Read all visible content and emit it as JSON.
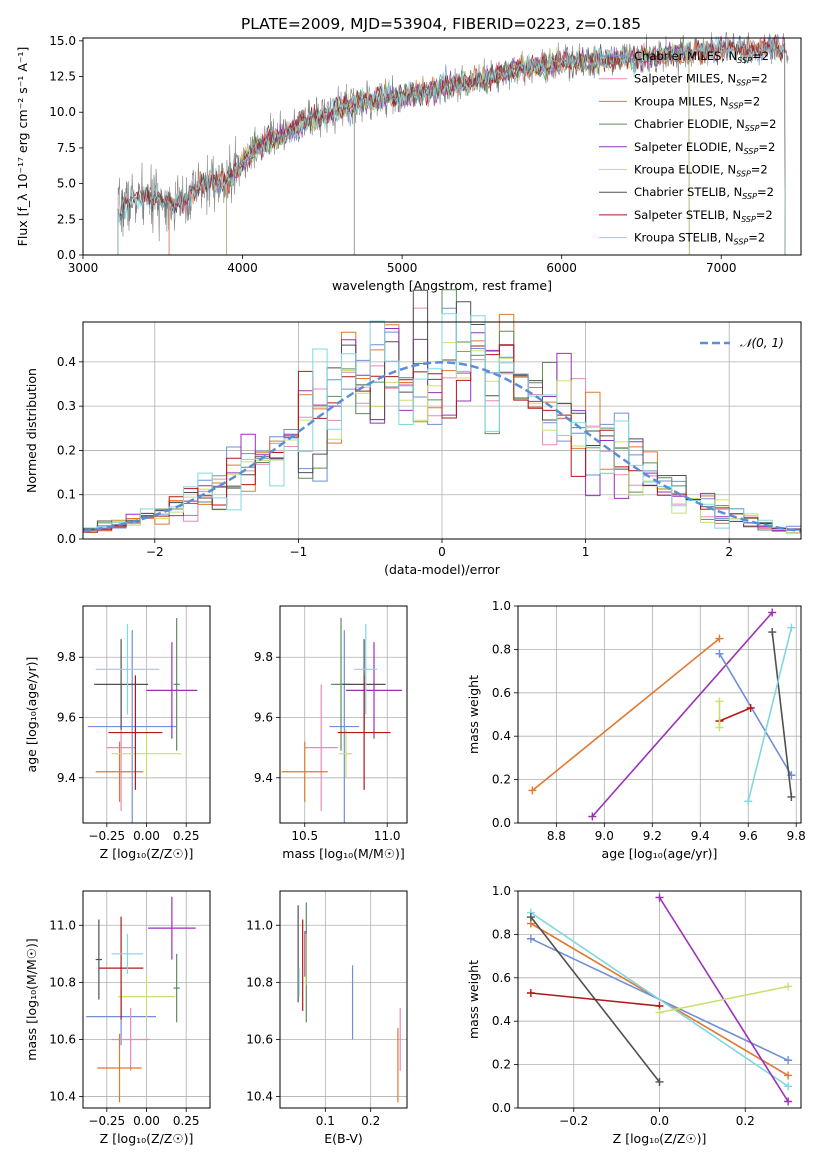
{
  "figure_title": "PLATE=2009, MJD=53904, FIBERID=0223, z=0.185",
  "colors": {
    "Chabrier MILES": "#6f8fd8",
    "Salpeter MILES": "#e88ab8",
    "Kroupa MILES": "#e07830",
    "Chabrier ELODIE": "#5e8c5e",
    "Salpeter ELODIE": "#9a30b8",
    "Kroupa ELODIE": "#c8e070",
    "Chabrier STELIB": "#505050",
    "Salpeter STELIB": "#b01818",
    "Kroupa STELIB": "#80d8e0",
    "data": "#808080",
    "gaussian": "#5a8ed8"
  },
  "chart_data": [
    {
      "id": "spectrum",
      "type": "line",
      "title": "PLATE=2009, MJD=53904, FIBERID=0223, z=0.185",
      "xlabel": "wavelength [Angstrom, rest frame]",
      "ylabel": "Flux [f_λ 10⁻¹⁷ erg cm⁻² s⁻¹ A⁻¹]",
      "xlim": [
        3000,
        7500
      ],
      "ylim": [
        0,
        15.2
      ],
      "xticks": [
        "3000",
        "4000",
        "5000",
        "6000",
        "7000"
      ],
      "yticks": [
        "0.0",
        "2.5",
        "5.0",
        "7.5",
        "10.0",
        "12.5",
        "15.0"
      ],
      "legend": [
        "Chabrier MILES, N_SSP=2",
        "Salpeter MILES, N_SSP=2",
        "Kroupa MILES, N_SSP=2",
        "Chabrier ELODIE, N_SSP=2",
        "Salpeter ELODIE, N_SSP=2",
        "Kroupa ELODIE, N_SSP=2",
        "Chabrier STELIB, N_SSP=2",
        "Salpeter STELIB, N_SSP=2",
        "Kroupa STELIB, N_SSP=2"
      ],
      "legend_position": "right",
      "continuum": [
        [
          3220,
          3.0
        ],
        [
          3300,
          3.9
        ],
        [
          3400,
          4.0
        ],
        [
          3500,
          3.8
        ],
        [
          3600,
          3.6
        ],
        [
          3700,
          4.4
        ],
        [
          3800,
          5.2
        ],
        [
          3900,
          5.0
        ],
        [
          4000,
          6.5
        ],
        [
          4100,
          7.6
        ],
        [
          4200,
          8.2
        ],
        [
          4300,
          8.6
        ],
        [
          4400,
          9.4
        ],
        [
          4500,
          9.8
        ],
        [
          4600,
          10.2
        ],
        [
          4700,
          10.6
        ],
        [
          4800,
          10.9
        ],
        [
          4900,
          11.1
        ],
        [
          5000,
          11.1
        ],
        [
          5100,
          11.3
        ],
        [
          5200,
          11.6
        ],
        [
          5300,
          11.9
        ],
        [
          5400,
          12.0
        ],
        [
          5500,
          12.3
        ],
        [
          5600,
          12.6
        ],
        [
          5700,
          12.9
        ],
        [
          5800,
          13.1
        ],
        [
          5900,
          13.3
        ],
        [
          6000,
          13.5
        ],
        [
          6100,
          13.5
        ],
        [
          6200,
          13.6
        ],
        [
          6300,
          13.7
        ],
        [
          6400,
          13.8
        ],
        [
          6500,
          13.8
        ],
        [
          6600,
          13.9
        ],
        [
          6700,
          14.1
        ],
        [
          6800,
          14.2
        ],
        [
          6900,
          14.3
        ],
        [
          7000,
          14.5
        ],
        [
          7100,
          14.5
        ],
        [
          7200,
          14.3
        ],
        [
          7300,
          14.6
        ],
        [
          7400,
          14.4
        ]
      ],
      "model_ranges": [
        {
          "name": "Chabrier MILES",
          "start": 3540,
          "end": 7400
        },
        {
          "name": "Salpeter MILES",
          "start": 3540,
          "end": 7400
        },
        {
          "name": "Kroupa MILES",
          "start": 3540,
          "end": 7400
        },
        {
          "name": "Chabrier ELODIE",
          "start": 3900,
          "end": 6800
        },
        {
          "name": "Salpeter ELODIE",
          "start": 3900,
          "end": 6800
        },
        {
          "name": "Kroupa ELODIE",
          "start": 3900,
          "end": 6800
        },
        {
          "name": "Chabrier STELIB",
          "start": 3220,
          "end": 7400
        },
        {
          "name": "Salpeter STELIB",
          "start": 3220,
          "end": 7400
        },
        {
          "name": "Kroupa STELIB",
          "start": 3220,
          "end": 7400
        }
      ]
    },
    {
      "id": "residuals",
      "type": "line",
      "xlabel": "(data-model)/error",
      "ylabel": "Normed distribution",
      "xlim": [
        -2.5,
        2.5
      ],
      "ylim": [
        0,
        0.49
      ],
      "xticks": [
        "−2",
        "−1",
        "0",
        "1",
        "2"
      ],
      "yticks": [
        "0.0",
        "0.1",
        "0.2",
        "0.3",
        "0.4"
      ],
      "grid": true,
      "legend": [
        "𝒩(0, 1)"
      ],
      "legend_position": "top-right",
      "bin_width": 0.1
    },
    {
      "id": "age_vs_Z",
      "type": "scatter",
      "xlabel": "Z [log₁₀(Z/Z☉)]",
      "ylabel": "age [log₁₀(age/yr)]",
      "xlim": [
        -0.4,
        0.4
      ],
      "ylim": [
        9.25,
        9.97
      ],
      "xticks": [
        "−0.25",
        "0.00",
        "0.25"
      ],
      "yticks": [
        "9.4",
        "9.6",
        "9.8"
      ],
      "grid": true,
      "points": [
        {
          "series": "Chabrier MILES",
          "x": -0.09,
          "xerr": 0.28,
          "y": 9.57,
          "yerr": 0.32
        },
        {
          "series": "Salpeter MILES",
          "x": -0.16,
          "xerr": 0.09,
          "y": 9.5,
          "yerr": 0.21
        },
        {
          "series": "Kroupa MILES",
          "x": -0.17,
          "xerr": 0.15,
          "y": 9.42,
          "yerr": 0.1
        },
        {
          "series": "Chabrier ELODIE",
          "x": 0.19,
          "xerr": 0.02,
          "y": 9.71,
          "yerr": 0.22
        },
        {
          "series": "Salpeter ELODIE",
          "x": 0.16,
          "xerr": 0.16,
          "y": 9.69,
          "yerr": 0.16
        },
        {
          "series": "Kroupa ELODIE",
          "x": 0.0,
          "xerr": 0.22,
          "y": 9.48,
          "yerr": 0.08
        },
        {
          "series": "Chabrier STELIB",
          "x": -0.16,
          "xerr": 0.17,
          "y": 9.71,
          "yerr": 0.15
        },
        {
          "series": "Salpeter STELIB",
          "x": -0.07,
          "xerr": 0.17,
          "y": 9.55,
          "yerr": 0.19
        },
        {
          "series": "Kroupa STELIB",
          "x": -0.12,
          "xerr": 0.2,
          "y": 9.76,
          "yerr": 0.15
        }
      ]
    },
    {
      "id": "age_vs_mass",
      "type": "scatter",
      "xlabel": "mass [log₁₀(M/M☉)]",
      "ylabel": "",
      "xlim": [
        10.35,
        11.12
      ],
      "ylim": [
        9.25,
        9.97
      ],
      "xticks": [
        "10.5",
        "11.0"
      ],
      "yticks": [
        "9.4",
        "9.6",
        "9.8"
      ],
      "grid": true,
      "points": [
        {
          "series": "Chabrier MILES",
          "x": 10.74,
          "xerr": 0.09,
          "y": 9.57,
          "yerr": 0.32
        },
        {
          "series": "Salpeter MILES",
          "x": 10.6,
          "xerr": 0.1,
          "y": 9.5,
          "yerr": 0.21
        },
        {
          "series": "Kroupa MILES",
          "x": 10.5,
          "xerr": 0.14,
          "y": 9.42,
          "yerr": 0.1
        },
        {
          "series": "Chabrier ELODIE",
          "x": 10.72,
          "xerr": 0.06,
          "y": 9.71,
          "yerr": 0.22
        },
        {
          "series": "Salpeter ELODIE",
          "x": 10.92,
          "xerr": 0.17,
          "y": 9.69,
          "yerr": 0.16
        },
        {
          "series": "Kroupa ELODIE",
          "x": 10.75,
          "xerr": 0.04,
          "y": 9.48,
          "yerr": 0.08
        },
        {
          "series": "Chabrier STELIB",
          "x": 10.86,
          "xerr": 0.13,
          "y": 9.71,
          "yerr": 0.15
        },
        {
          "series": "Salpeter STELIB",
          "x": 10.86,
          "xerr": 0.16,
          "y": 9.55,
          "yerr": 0.19
        },
        {
          "series": "Kroupa STELIB",
          "x": 10.87,
          "xerr": 0.07,
          "y": 9.76,
          "yerr": 0.15
        }
      ]
    },
    {
      "id": "mass_weight_vs_age",
      "type": "line",
      "xlabel": "age [log₁₀(age/yr)]",
      "ylabel": "mass weight",
      "xlim": [
        8.64,
        9.82
      ],
      "ylim": [
        0,
        1
      ],
      "xticks": [
        "8.8",
        "9.0",
        "9.2",
        "9.4",
        "9.6",
        "9.8"
      ],
      "yticks": [
        "0.0",
        "0.2",
        "0.4",
        "0.6",
        "0.8",
        "1.0"
      ],
      "grid": true,
      "series": [
        {
          "series": "Kroupa MILES",
          "points": [
            [
              8.7,
              0.15
            ],
            [
              9.48,
              0.85
            ]
          ]
        },
        {
          "series": "Salpeter ELODIE",
          "points": [
            [
              8.95,
              0.03
            ],
            [
              9.7,
              0.97
            ]
          ]
        },
        {
          "series": "Chabrier MILES",
          "points": [
            [
              9.48,
              0.78
            ],
            [
              9.78,
              0.22
            ]
          ]
        },
        {
          "series": "Salpeter STELIB",
          "points": [
            [
              9.48,
              0.47
            ],
            [
              9.61,
              0.53
            ]
          ]
        },
        {
          "series": "Kroupa ELODIE",
          "points": [
            [
              9.48,
              0.44
            ],
            [
              9.48,
              0.56
            ]
          ]
        },
        {
          "series": "Chabrier STELIB",
          "points": [
            [
              9.7,
              0.88
            ],
            [
              9.78,
              0.12
            ]
          ]
        },
        {
          "series": "Kroupa STELIB",
          "points": [
            [
              9.6,
              0.1
            ],
            [
              9.78,
              0.9
            ]
          ]
        }
      ]
    },
    {
      "id": "mass_vs_Z",
      "type": "scatter",
      "xlabel": "Z [log₁₀(Z/Z☉)]",
      "ylabel": "mass [log₁₀(M/M☉)]",
      "xlim": [
        -0.4,
        0.4
      ],
      "ylim": [
        10.36,
        11.12
      ],
      "xticks": [
        "−0.25",
        "0.00",
        "0.25"
      ],
      "yticks": [
        "10.4",
        "10.6",
        "10.8",
        "11.0"
      ],
      "grid": true,
      "points": [
        {
          "series": "Chabrier MILES",
          "x": -0.16,
          "xerr": 0.22,
          "y": 10.68,
          "yerr": 0.1
        },
        {
          "series": "Salpeter MILES",
          "x": -0.1,
          "xerr": 0.12,
          "y": 10.6,
          "yerr": 0.11
        },
        {
          "series": "Kroupa MILES",
          "x": -0.17,
          "xerr": 0.14,
          "y": 10.5,
          "yerr": 0.12
        },
        {
          "series": "Chabrier ELODIE",
          "x": 0.19,
          "xerr": 0.02,
          "y": 10.78,
          "yerr": 0.12
        },
        {
          "series": "Salpeter ELODIE",
          "x": 0.16,
          "xerr": 0.15,
          "y": 10.99,
          "yerr": 0.11
        },
        {
          "series": "Kroupa ELODIE",
          "x": 0.0,
          "xerr": 0.18,
          "y": 10.75,
          "yerr": 0.08
        },
        {
          "series": "Chabrier STELIB",
          "x": -0.3,
          "xerr": 0.02,
          "y": 10.88,
          "yerr": 0.14
        },
        {
          "series": "Salpeter STELIB",
          "x": -0.16,
          "xerr": 0.14,
          "y": 10.85,
          "yerr": 0.18
        },
        {
          "series": "Kroupa STELIB",
          "x": -0.12,
          "xerr": 0.1,
          "y": 10.9,
          "yerr": 0.07
        }
      ]
    },
    {
      "id": "mass_vs_ebv",
      "type": "scatter",
      "xlabel": "E(B-V)",
      "ylabel": "",
      "xlim": [
        0.0,
        0.28
      ],
      "ylim": [
        10.36,
        11.12
      ],
      "xticks": [
        "0.1",
        "0.2"
      ],
      "yticks": [
        "10.4",
        "10.6",
        "10.8",
        "11.0"
      ],
      "grid": true,
      "points": [
        {
          "series": "Chabrier MILES",
          "x": 0.16,
          "y": 10.73,
          "yerr": 0.13
        },
        {
          "series": "Salpeter MILES",
          "x": 0.265,
          "y": 10.6,
          "yerr": 0.11
        },
        {
          "series": "Kroupa MILES",
          "x": 0.26,
          "y": 10.51,
          "yerr": 0.13
        },
        {
          "series": "Chabrier ELODIE",
          "x": 0.058,
          "y": 10.87,
          "yerr": 0.21
        },
        {
          "series": "Salpeter ELODIE",
          "x": 0.055,
          "y": 10.9,
          "yerr": 0.08
        },
        {
          "series": "Kroupa ELODIE",
          "x": 0.057,
          "y": 10.88,
          "yerr": 0.09
        },
        {
          "series": "Chabrier STELIB",
          "x": 0.04,
          "y": 10.9,
          "yerr": 0.17
        },
        {
          "series": "Salpeter STELIB",
          "x": 0.05,
          "y": 10.86,
          "yerr": 0.16
        },
        {
          "series": "Kroupa STELIB",
          "x": 0.042,
          "y": 10.8,
          "yerr": 0.05
        }
      ]
    },
    {
      "id": "mass_weight_vs_Z",
      "type": "line",
      "xlabel": "Z [log₁₀(Z/Z☉)]",
      "ylabel": "mass weight",
      "xlim": [
        -0.33,
        0.33
      ],
      "ylim": [
        0,
        1
      ],
      "xticks": [
        "−0.2",
        "0.0",
        "0.2"
      ],
      "yticks": [
        "0.0",
        "0.2",
        "0.4",
        "0.6",
        "0.8",
        "1.0"
      ],
      "grid": true,
      "series": [
        {
          "series": "Kroupa MILES",
          "points": [
            [
              -0.3,
              0.85
            ],
            [
              0.3,
              0.15
            ]
          ]
        },
        {
          "series": "Chabrier MILES",
          "points": [
            [
              -0.3,
              0.78
            ],
            [
              0.3,
              0.22
            ]
          ]
        },
        {
          "series": "Kroupa STELIB",
          "points": [
            [
              -0.3,
              0.9
            ],
            [
              0.3,
              0.1
            ]
          ]
        },
        {
          "series": "Chabrier STELIB",
          "points": [
            [
              -0.3,
              0.88
            ],
            [
              0.0,
              0.12
            ]
          ]
        },
        {
          "series": "Salpeter STELIB",
          "points": [
            [
              -0.3,
              0.53
            ],
            [
              0.0,
              0.47
            ]
          ]
        },
        {
          "series": "Salpeter ELODIE",
          "points": [
            [
              0.0,
              0.97
            ],
            [
              0.3,
              0.03
            ]
          ]
        },
        {
          "series": "Kroupa ELODIE",
          "points": [
            [
              0.0,
              0.44
            ],
            [
              0.3,
              0.56
            ]
          ]
        }
      ]
    }
  ]
}
